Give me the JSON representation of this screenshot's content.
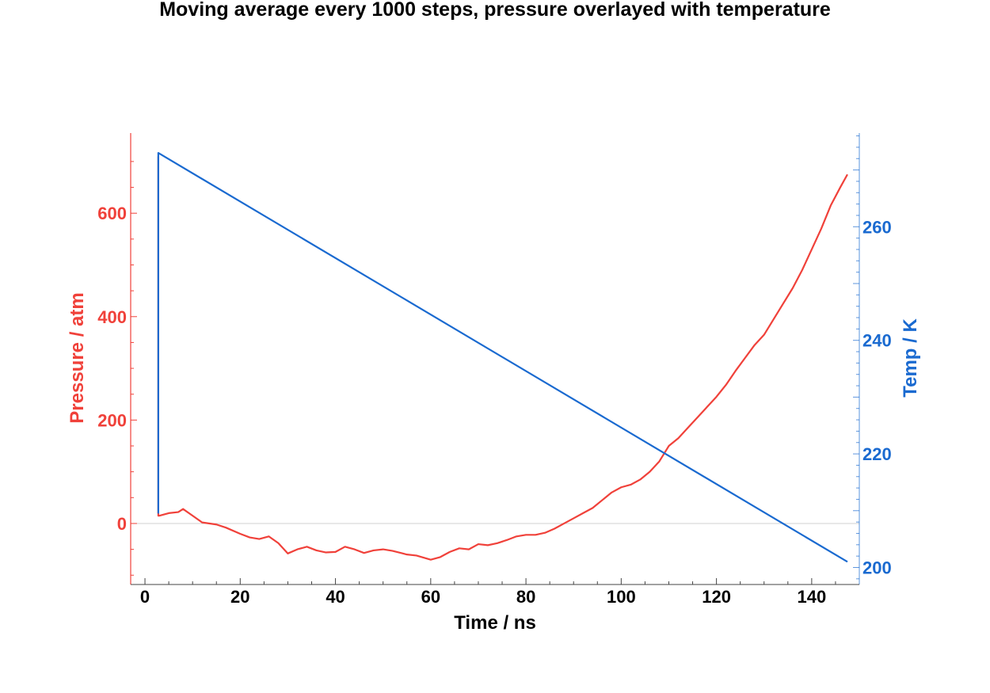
{
  "chart_data": {
    "type": "line",
    "title": "Moving average every 1000 steps, pressure overlayed with temperature",
    "xlabel": "Time / ns",
    "ylabel_left": "Pressure /  atm",
    "ylabel_right": "Temp / K",
    "xlim": [
      -3,
      150
    ],
    "ylim_left": [
      -118,
      755
    ],
    "ylim_right": [
      197,
      276.5
    ],
    "x_ticks": [
      0,
      20,
      40,
      60,
      80,
      100,
      120,
      140
    ],
    "y_ticks_left": [
      0,
      200,
      400,
      600
    ],
    "y_ticks_right": [
      200,
      220,
      240,
      260
    ],
    "zero_line": true,
    "grid": false,
    "colors": {
      "pressure": "#f0413a",
      "temperature": "#1a6ad0",
      "axis_text": "#000000"
    },
    "series": [
      {
        "name": "Pressure",
        "axis": "left",
        "color": "#f0413a",
        "x": [
          2.8,
          2.8,
          3,
          5,
          7,
          8,
          10,
          12,
          15,
          17,
          20,
          22,
          24,
          26,
          28,
          30,
          32,
          34,
          36,
          38,
          40,
          42,
          44,
          46,
          48,
          50,
          52,
          55,
          57,
          60,
          62,
          64,
          66,
          68,
          70,
          72,
          74,
          76,
          78,
          80,
          82,
          84,
          86,
          88,
          90,
          92,
          94,
          96,
          98,
          100,
          102,
          104,
          106,
          108,
          110,
          112,
          114,
          116,
          118,
          120,
          122,
          124,
          126,
          128,
          130,
          132,
          134,
          136,
          138,
          140,
          142,
          144,
          146,
          147.5
        ],
        "y": [
          710,
          15,
          15,
          20,
          22,
          28,
          15,
          2,
          -2,
          -8,
          -20,
          -27,
          -30,
          -25,
          -38,
          -58,
          -50,
          -45,
          -52,
          -56,
          -55,
          -45,
          -50,
          -57,
          -52,
          -50,
          -53,
          -60,
          -62,
          -70,
          -65,
          -55,
          -48,
          -50,
          -40,
          -42,
          -38,
          -32,
          -25,
          -22,
          -22,
          -18,
          -10,
          0,
          10,
          20,
          30,
          45,
          60,
          70,
          75,
          85,
          100,
          120,
          150,
          165,
          185,
          205,
          225,
          245,
          268,
          295,
          320,
          345,
          365,
          395,
          425,
          455,
          490,
          530,
          570,
          615,
          650,
          675
        ]
      },
      {
        "name": "Temperature",
        "axis": "right",
        "color": "#1a6ad0",
        "x": [
          2.8,
          2.8,
          147.5
        ],
        "y": [
          209.5,
          273,
          201
        ]
      }
    ]
  }
}
